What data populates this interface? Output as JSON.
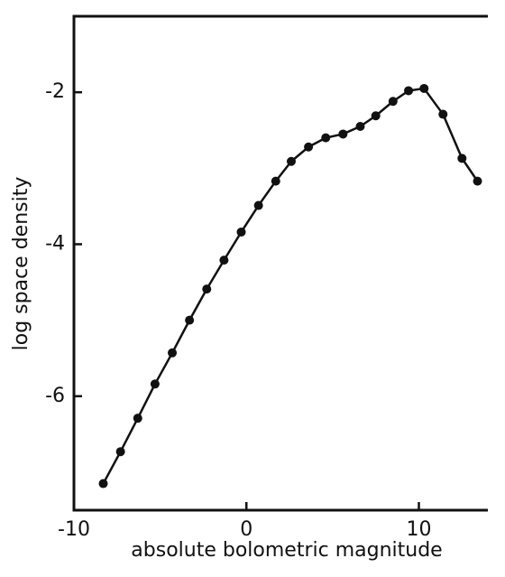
{
  "chart_data": {
    "type": "line",
    "x_label": "absolute bolometric magnitude",
    "y_label": "log space density",
    "xlim": [
      -10,
      14
    ],
    "ylim": [
      -7.5,
      -1
    ],
    "xticks": [
      -10,
      0,
      10
    ],
    "yticks": [
      -2,
      -4,
      -6
    ],
    "color": "#111111",
    "markers": true,
    "x": [
      -8.3,
      -7.3,
      -6.3,
      -5.3,
      -4.3,
      -3.3,
      -2.3,
      -1.3,
      -0.3,
      0.7,
      1.7,
      2.6,
      3.6,
      4.6,
      5.6,
      6.6,
      7.5,
      8.5,
      9.4,
      10.3,
      11.4,
      12.5,
      13.4
    ],
    "values": [
      -7.15,
      -6.73,
      -6.29,
      -5.84,
      -5.43,
      -5.0,
      -4.59,
      -4.21,
      -3.84,
      -3.49,
      -3.17,
      -2.91,
      -2.72,
      -2.6,
      -2.55,
      -2.45,
      -2.31,
      -2.12,
      -1.98,
      -1.95,
      -2.29,
      -2.87,
      -3.17
    ]
  }
}
